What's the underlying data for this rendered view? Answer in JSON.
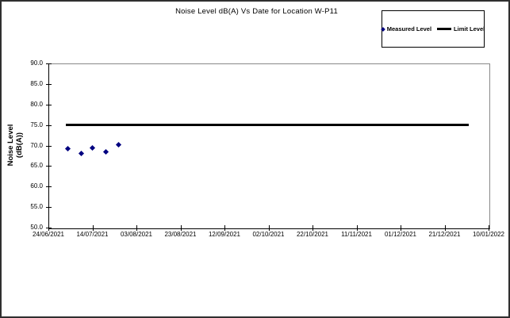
{
  "chart_data": {
    "type": "scatter",
    "title": "Noise Level dB(A) Vs Date for Location W-P11",
    "xlabel": "",
    "ylabel_lines": [
      "Noise Level",
      "(dB(A))"
    ],
    "xlim": [
      "24/06/2021",
      "10/01/2022"
    ],
    "ylim": [
      50.0,
      90.0
    ],
    "y_tick_labels": [
      "90.0",
      "85.0",
      "80.0",
      "75.0",
      "70.0",
      "65.0",
      "60.0",
      "55.0",
      "50.0"
    ],
    "x_tick_labels": [
      "24/06/2021",
      "14/07/2021",
      "03/08/2021",
      "23/08/2021",
      "12/09/2021",
      "02/10/2021",
      "22/10/2021",
      "11/11/2021",
      "01/12/2021",
      "21/12/2021",
      "10/01/2022"
    ],
    "grid": false,
    "legend_position": "top-right",
    "series": [
      {
        "name": "Measured Level",
        "render": "scatter",
        "marker": "diamond",
        "color": "#000080",
        "points": [
          {
            "date": "03/07/2021",
            "value": 69.2
          },
          {
            "date": "09/07/2021",
            "value": 68.0
          },
          {
            "date": "14/07/2021",
            "value": 69.5
          },
          {
            "date": "20/07/2021",
            "value": 68.4
          },
          {
            "date": "26/07/2021",
            "value": 70.2
          }
        ]
      },
      {
        "name": "Limit Level",
        "render": "line",
        "color": "#000000",
        "points": [
          {
            "date": "02/07/2021",
            "value": 75.0
          },
          {
            "date": "01/01/2022",
            "value": 75.0
          }
        ]
      }
    ]
  },
  "colors": {
    "background": "#ffffff",
    "plot_border": "#888888",
    "axis": "#000000",
    "marker": "#000080",
    "limit_line": "#000000"
  }
}
